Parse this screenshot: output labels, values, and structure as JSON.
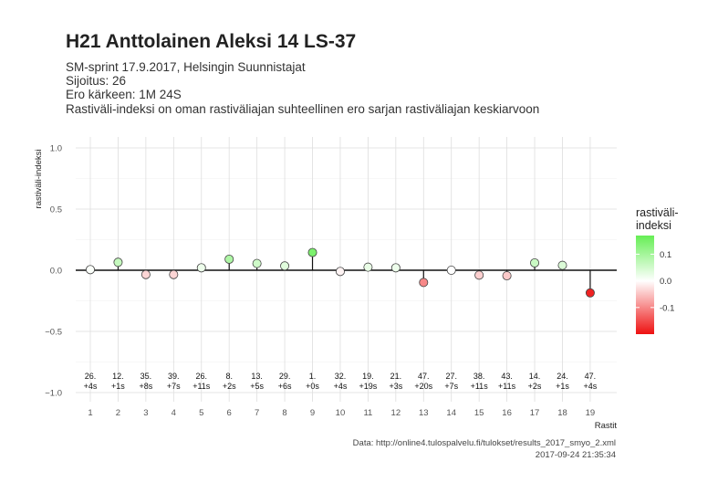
{
  "header": {
    "title": "H21 Anttolainen Aleksi 14 LS-37",
    "subtitle_lines": [
      "SM-sprint 17.9.2017, Helsingin Suunnistajat",
      "Sijoitus: 26",
      "Ero kärkeen: 1M 24S",
      "Rastiväli-indeksi on oman rastiväliajan suhteellinen ero sarjan rastiväliajan keskiarvoon"
    ]
  },
  "caption": {
    "source": "Data: http://online4.tulospalvelu.fi/tulokset/results_2017_smyo_2.xml",
    "timestamp": "2017-09-24 21:35:34"
  },
  "chart_data": {
    "type": "scatter",
    "style": "lollipop",
    "xlabel": "Rastit",
    "ylabel": "rastiväli-indeksi",
    "ylim": [
      -1.0,
      1.0
    ],
    "yticks": [
      -1.0,
      -0.5,
      0.0,
      0.5,
      1.0
    ],
    "ytick_labels": [
      "−1.0",
      "−0.5",
      "0.0",
      "0.5",
      "1.0"
    ],
    "x": [
      1,
      2,
      3,
      4,
      5,
      6,
      7,
      8,
      9,
      10,
      11,
      12,
      13,
      14,
      15,
      16,
      17,
      18,
      19
    ],
    "values": [
      0.005,
      0.065,
      -0.035,
      -0.035,
      0.02,
      0.09,
      0.055,
      0.035,
      0.145,
      -0.01,
      0.025,
      0.02,
      -0.1,
      0.0,
      -0.04,
      -0.045,
      0.06,
      0.04,
      -0.185
    ],
    "rank_labels": [
      "26.",
      "12.",
      "35.",
      "39.",
      "26.",
      "8.",
      "13.",
      "29.",
      "1.",
      "32.",
      "19.",
      "21.",
      "47.",
      "27.",
      "38.",
      "43.",
      "14.",
      "24.",
      "47."
    ],
    "diff_labels": [
      "+4s",
      "+1s",
      "+8s",
      "+7s",
      "+11s",
      "+2s",
      "+5s",
      "+6s",
      "+0s",
      "+4s",
      "+19s",
      "+3s",
      "+20s",
      "+7s",
      "+11s",
      "+11s",
      "+2s",
      "+1s",
      "+4s"
    ],
    "grid": true,
    "legend": {
      "title_lines": [
        "rastiväli-",
        "indeksi"
      ],
      "position": "right",
      "ticks": [
        0.1,
        0.0,
        -0.1
      ],
      "tick_labels": [
        "0.1",
        "0.0",
        "-0.1"
      ],
      "range": [
        -0.2,
        0.17
      ],
      "colors": {
        "high": "#66ee55",
        "mid": "#ffffff",
        "low": "#ee1111"
      }
    }
  }
}
